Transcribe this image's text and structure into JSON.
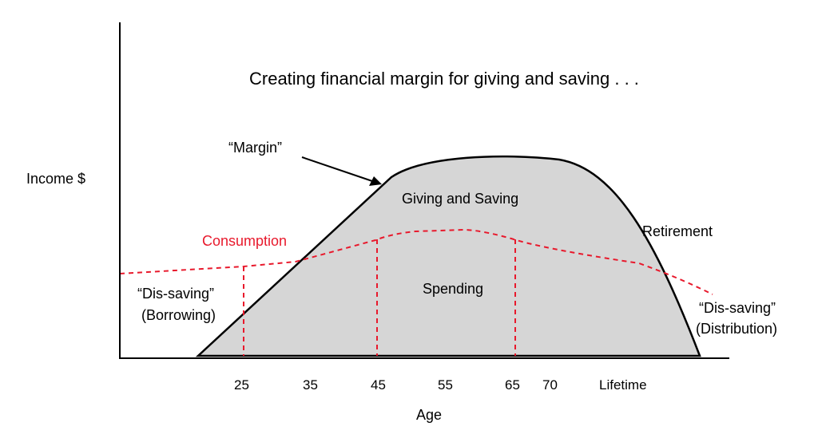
{
  "title": "Creating financial margin for giving and saving . . .",
  "y_axis_label": "Income $",
  "x_axis_label": "Age",
  "x_ticks": [
    "25",
    "35",
    "45",
    "55",
    "65",
    "70",
    "Lifetime"
  ],
  "labels": {
    "margin": "“Margin”",
    "giving_saving": "Giving and Saving",
    "spending": "Spending",
    "consumption": "Consumption",
    "retirement": "Retirement",
    "dissaving_left_1": "“Dis-saving”",
    "dissaving_left_2": "(Borrowing)",
    "dissaving_right_1": "“Dis-saving”",
    "dissaving_right_2": "(Distribution)"
  },
  "colors": {
    "income_fill": "#d6d6d6",
    "consumption": "#e8192c",
    "axis": "#000000"
  }
}
